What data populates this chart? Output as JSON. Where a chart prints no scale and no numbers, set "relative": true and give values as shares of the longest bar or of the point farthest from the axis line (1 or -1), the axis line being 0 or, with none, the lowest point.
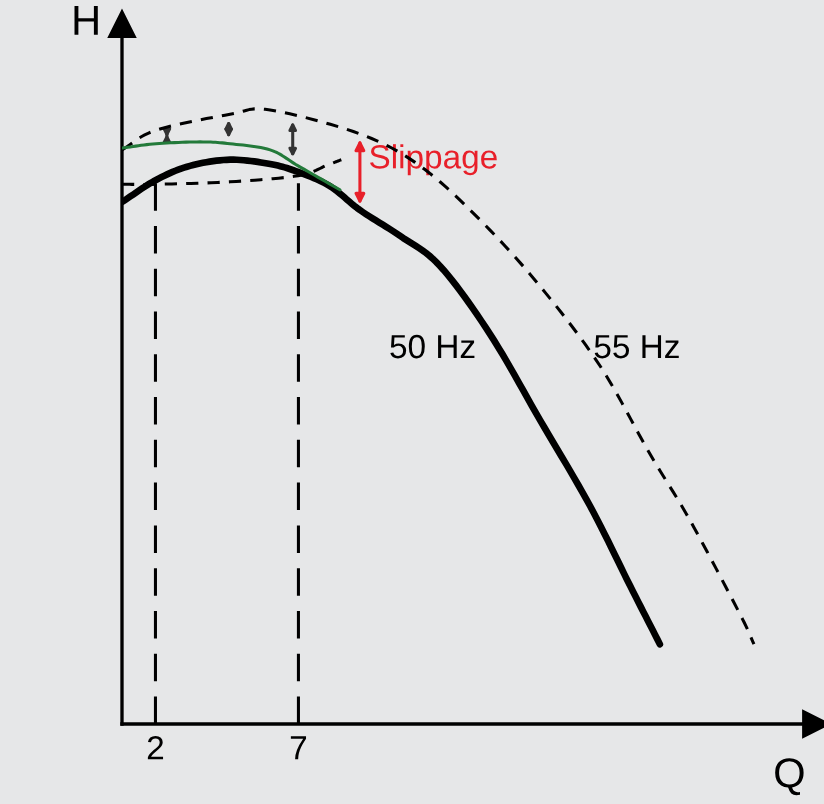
{
  "chart_data": {
    "type": "line",
    "relative": true,
    "xlabel": "Q",
    "ylabel": "H",
    "xlim": [
      0.83,
      25.1
    ],
    "xticks": [
      2,
      7
    ],
    "tick_labels": "x",
    "grid": false,
    "legend": false,
    "series": [
      {
        "name": "50 Hz",
        "color": "#000000",
        "line_style": "solid",
        "x": [
          0.83,
          2.02,
          3.21,
          4.61,
          6.01,
          6.99,
          8.1,
          9.15,
          10.55,
          11.95,
          13.7,
          15.45,
          17.2,
          18.6,
          19.64
        ],
        "values": [
          0.85,
          0.886,
          0.909,
          0.919,
          0.912,
          0.899,
          0.876,
          0.837,
          0.795,
          0.746,
          0.635,
          0.495,
          0.355,
          0.225,
          0.13
        ]
      },
      {
        "name": "55 Hz",
        "color": "#000000",
        "line_style": "dashed",
        "x": [
          0.83,
          2.02,
          4.61,
          6.01,
          9.15,
          11.25,
          13.35,
          15.45,
          17.55,
          19.29,
          20.69,
          22.44,
          22.93
        ],
        "values": [
          0.935,
          0.967,
          0.993,
          1.0,
          0.961,
          0.909,
          0.821,
          0.713,
          0.583,
          0.44,
          0.332,
          0.179,
          0.13
        ]
      },
      {
        "color": "#237a3a",
        "line_style": "solid",
        "x": [
          0.83,
          2.02,
          3.56,
          4.61,
          6.01,
          6.99,
          8.45
        ],
        "values": [
          0.938,
          0.945,
          0.948,
          0.945,
          0.935,
          0.909,
          0.87
        ]
      },
      {
        "color": "#000000",
        "line_style": "dashed",
        "x": [
          0.83,
          2.02,
          4.61,
          6.99,
          8.0,
          8.5
        ],
        "values": [
          0.879,
          0.879,
          0.883,
          0.893,
          0.91,
          0.919
        ]
      }
    ],
    "ref_lines": [
      {
        "axis": "x",
        "value": 2,
        "color": "#000000",
        "line_style": "dashed"
      },
      {
        "axis": "x",
        "value": 7,
        "color": "#000000",
        "line_style": "dashed"
      }
    ],
    "annotations": [
      {
        "text": "Slippage",
        "x": 9.15,
        "y": 0.961
      }
    ]
  }
}
